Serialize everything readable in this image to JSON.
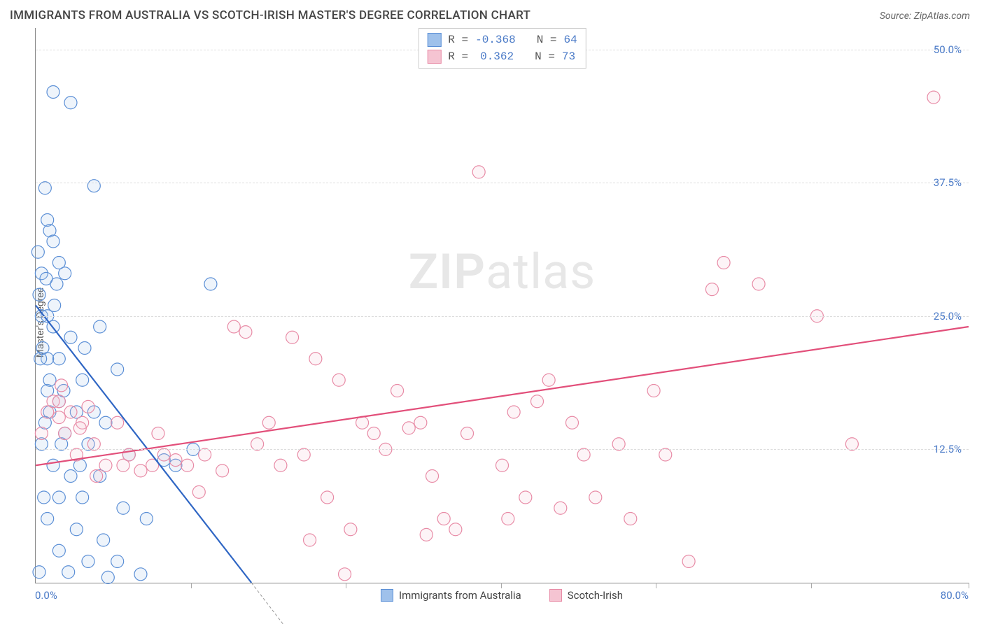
{
  "title": "IMMIGRANTS FROM AUSTRALIA VS SCOTCH-IRISH MASTER'S DEGREE CORRELATION CHART",
  "source_prefix": "Source: ",
  "source_name": "ZipAtlas.com",
  "ylabel": "Master's Degree",
  "watermark_bold": "ZIP",
  "watermark_rest": "atlas",
  "chart": {
    "type": "scatter",
    "background_color": "#ffffff",
    "grid_color": "#dddddd",
    "axis_color": "#888888",
    "xlim": [
      0,
      80
    ],
    "ylim": [
      0,
      52
    ],
    "xtick_positions": [
      0,
      13.3,
      26.6,
      39.9,
      53.2,
      66.5,
      80
    ],
    "xlabel_min": "0.0%",
    "xlabel_max": "80.0%",
    "yticks": [
      {
        "v": 12.5,
        "label": "12.5%"
      },
      {
        "v": 25.0,
        "label": "25.0%"
      },
      {
        "v": 37.5,
        "label": "37.5%"
      },
      {
        "v": 50.0,
        "label": "50.0%"
      }
    ],
    "ylabel_color": "#4a7ac7",
    "xlabel_color": "#4a7ac7",
    "marker_radius": 9,
    "marker_stroke_width": 1.2,
    "marker_fill_opacity": 0.18,
    "series": [
      {
        "key": "australia",
        "label": "Immigrants from Australia",
        "color_stroke": "#5b8fd6",
        "color_fill": "#9fc1eb",
        "r_value": "-0.368",
        "n_value": "64",
        "trend": {
          "x1": 0,
          "y1": 26,
          "x2": 18.5,
          "y2": 0,
          "color": "#2f66c4",
          "width": 2.2
        },
        "trend_ext": {
          "x1": 18.5,
          "y1": 0,
          "x2": 22,
          "y2": -5,
          "color": "#999999",
          "dash": "4,3",
          "width": 1
        },
        "points": [
          [
            0.5,
            25
          ],
          [
            1.5,
            46
          ],
          [
            3,
            45
          ],
          [
            0.8,
            37
          ],
          [
            5,
            37.2
          ],
          [
            1,
            34
          ],
          [
            1.2,
            33
          ],
          [
            1.5,
            32
          ],
          [
            2,
            30
          ],
          [
            0.5,
            29
          ],
          [
            2.5,
            29
          ],
          [
            1.8,
            28
          ],
          [
            0.3,
            27
          ],
          [
            15,
            28
          ],
          [
            1,
            25
          ],
          [
            1.5,
            24
          ],
          [
            5.5,
            24
          ],
          [
            3,
            23
          ],
          [
            2,
            21
          ],
          [
            1,
            21
          ],
          [
            0.4,
            21
          ],
          [
            7,
            20
          ],
          [
            4,
            19
          ],
          [
            1,
            18
          ],
          [
            2,
            17
          ],
          [
            5,
            16
          ],
          [
            3.5,
            16
          ],
          [
            1.2,
            16
          ],
          [
            0.8,
            15
          ],
          [
            6,
            15
          ],
          [
            2.5,
            14
          ],
          [
            4.5,
            13
          ],
          [
            0.5,
            13
          ],
          [
            8,
            12
          ],
          [
            1.5,
            11
          ],
          [
            3,
            10
          ],
          [
            5.5,
            10
          ],
          [
            12,
            11
          ],
          [
            2,
            8
          ],
          [
            4,
            8
          ],
          [
            7.5,
            7
          ],
          [
            1,
            6
          ],
          [
            9.5,
            6
          ],
          [
            3.5,
            5
          ],
          [
            2,
            3
          ],
          [
            4.5,
            2
          ],
          [
            7,
            2
          ],
          [
            0.3,
            1
          ],
          [
            2.8,
            1
          ],
          [
            6.2,
            0.5
          ],
          [
            1.2,
            19
          ],
          [
            0.6,
            22
          ],
          [
            3.8,
            11
          ],
          [
            2.2,
            13
          ],
          [
            0.9,
            28.5
          ],
          [
            1.6,
            26
          ],
          [
            0.2,
            31
          ],
          [
            2.4,
            18
          ],
          [
            4.2,
            22
          ],
          [
            0.7,
            8
          ],
          [
            5.8,
            4
          ],
          [
            9,
            0.8
          ],
          [
            11,
            11.5
          ],
          [
            13.5,
            12.5
          ]
        ]
      },
      {
        "key": "scotch_irish",
        "label": "Scotch-Irish",
        "color_stroke": "#e88ba6",
        "color_fill": "#f5c4d2",
        "r_value": "0.362",
        "n_value": "73",
        "trend": {
          "x1": 0,
          "y1": 11,
          "x2": 80,
          "y2": 24,
          "color": "#e24f7a",
          "width": 2.2
        },
        "points": [
          [
            1,
            16
          ],
          [
            2,
            15.5
          ],
          [
            3,
            16
          ],
          [
            1.5,
            17
          ],
          [
            2.5,
            14
          ],
          [
            4,
            15
          ],
          [
            3.5,
            12
          ],
          [
            5,
            13
          ],
          [
            2,
            17
          ],
          [
            6,
            11
          ],
          [
            4.5,
            16.5
          ],
          [
            8,
            12
          ],
          [
            7.5,
            11
          ],
          [
            9,
            10.5
          ],
          [
            10.5,
            14
          ],
          [
            10,
            11
          ],
          [
            11,
            12
          ],
          [
            12,
            11.5
          ],
          [
            13,
            11
          ],
          [
            14.5,
            12
          ],
          [
            16,
            10.5
          ],
          [
            17,
            24
          ],
          [
            18,
            23.5
          ],
          [
            19,
            13
          ],
          [
            20,
            15
          ],
          [
            22,
            23
          ],
          [
            21,
            11
          ],
          [
            23,
            12
          ],
          [
            24,
            21
          ],
          [
            25,
            8
          ],
          [
            26,
            19
          ],
          [
            27,
            5
          ],
          [
            28,
            15
          ],
          [
            29,
            14
          ],
          [
            30,
            12.5
          ],
          [
            31,
            18
          ],
          [
            32,
            14.5
          ],
          [
            33,
            15
          ],
          [
            34,
            10
          ],
          [
            35,
            6
          ],
          [
            36,
            5
          ],
          [
            37,
            14
          ],
          [
            38,
            38.5
          ],
          [
            40,
            11
          ],
          [
            41,
            16
          ],
          [
            42,
            8
          ],
          [
            43,
            17
          ],
          [
            44,
            19
          ],
          [
            45,
            7
          ],
          [
            47,
            12
          ],
          [
            48,
            8
          ],
          [
            50,
            13
          ],
          [
            51,
            6
          ],
          [
            53,
            18
          ],
          [
            54,
            12
          ],
          [
            56,
            2
          ],
          [
            58,
            27.5
          ],
          [
            59,
            30
          ],
          [
            62,
            28
          ],
          [
            67,
            25
          ],
          [
            70,
            13
          ],
          [
            77,
            45.5
          ],
          [
            2.2,
            18.5
          ],
          [
            0.5,
            14
          ],
          [
            3.8,
            14.5
          ],
          [
            5.2,
            10
          ],
          [
            7,
            15
          ],
          [
            14,
            8.5
          ],
          [
            23.5,
            4
          ],
          [
            26.5,
            0.8
          ],
          [
            33.5,
            4.5
          ],
          [
            40.5,
            6
          ],
          [
            46,
            15
          ]
        ]
      }
    ]
  },
  "legend_top_labels": {
    "R": "R =",
    "N": "N ="
  }
}
